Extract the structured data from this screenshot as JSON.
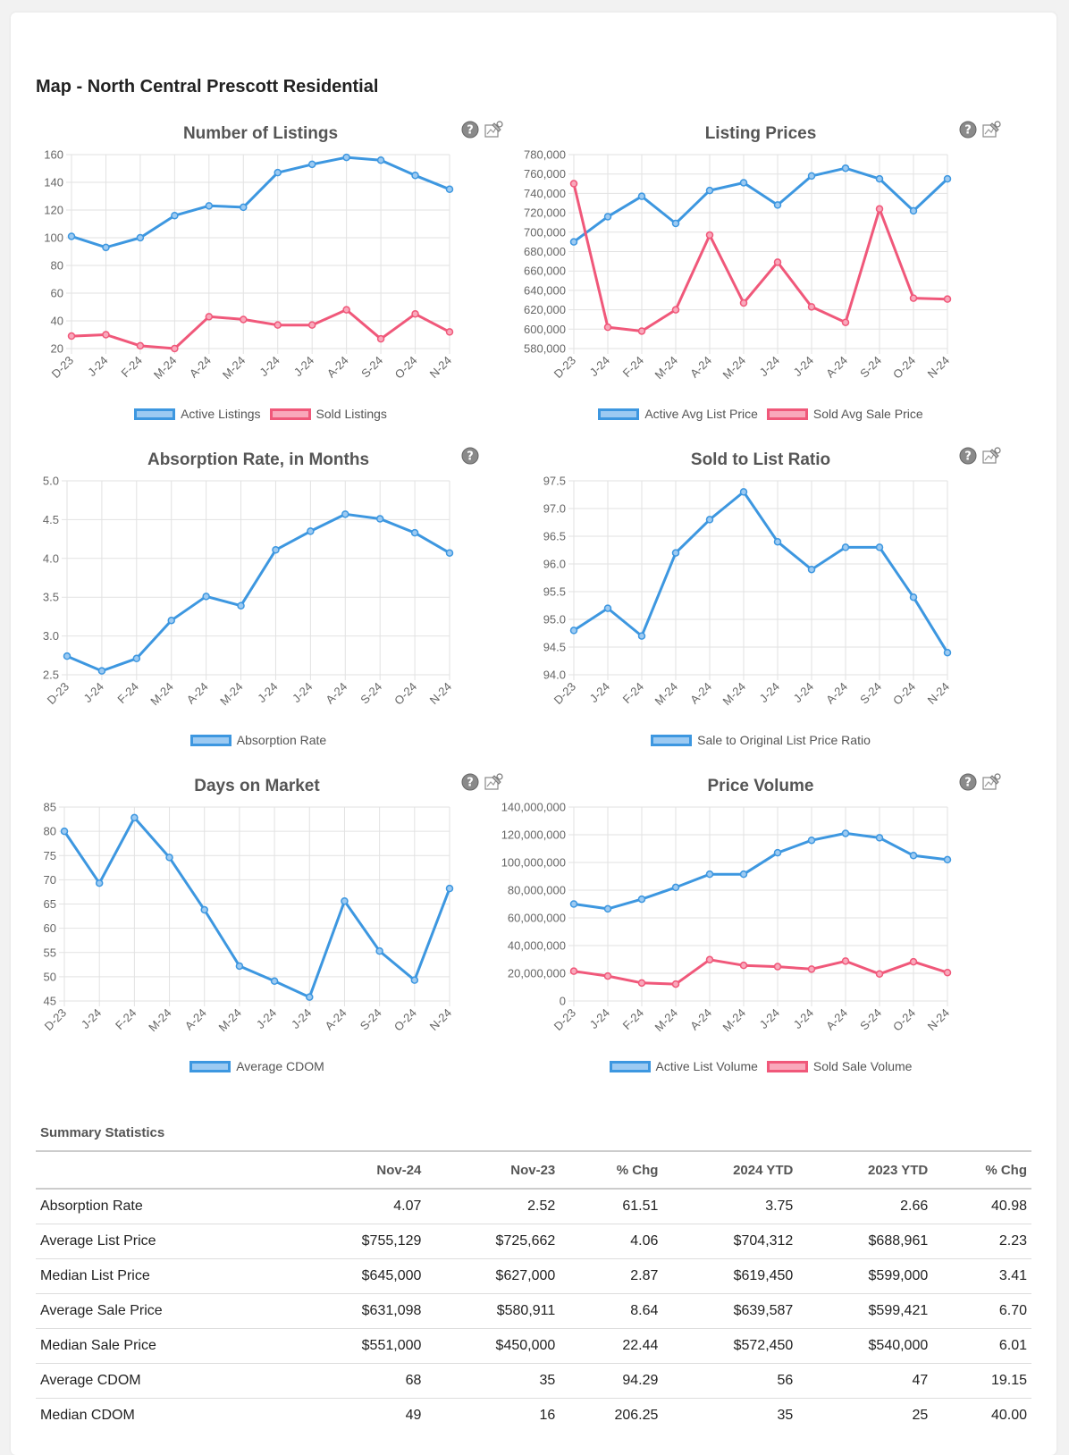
{
  "page": {
    "title": "Map - North Central Prescott Residential"
  },
  "colors": {
    "blue": "#3d97e0",
    "red": "#f0587a",
    "blue_fill": "#9ccaf2",
    "red_fill": "#f9a8bb",
    "grid": "#e2e2e2",
    "axis_text": "#666666"
  },
  "chart_data": [
    {
      "type": "line",
      "title": "Number of Listings",
      "categories": [
        "D-23",
        "J-24",
        "F-24",
        "M-24",
        "A-24",
        "M-24",
        "J-24",
        "J-24",
        "A-24",
        "S-24",
        "O-24",
        "N-24"
      ],
      "yticks": [
        20,
        40,
        60,
        80,
        100,
        120,
        140,
        160
      ],
      "tick_labels": [
        "20",
        "40",
        "60",
        "80",
        "100",
        "120",
        "140",
        "160"
      ],
      "ylim": [
        20,
        160
      ],
      "series": [
        {
          "name": "Active Listings",
          "color": "#3d97e0",
          "values": [
            101,
            93,
            100,
            116,
            123,
            122,
            147,
            153,
            158,
            156,
            145,
            135
          ]
        },
        {
          "name": "Sold Listings",
          "color": "#f0587a",
          "values": [
            29,
            30,
            22,
            20,
            43,
            41,
            37,
            37,
            48,
            27,
            45,
            32
          ]
        }
      ]
    },
    {
      "type": "line",
      "title": "Listing Prices",
      "categories": [
        "D-23",
        "J-24",
        "F-24",
        "M-24",
        "A-24",
        "M-24",
        "J-24",
        "J-24",
        "A-24",
        "S-24",
        "O-24",
        "N-24"
      ],
      "yticks": [
        580000,
        600000,
        620000,
        640000,
        660000,
        680000,
        700000,
        720000,
        740000,
        760000,
        780000
      ],
      "tick_labels": [
        "580,000",
        "600,000",
        "620,000",
        "640,000",
        "660,000",
        "680,000",
        "700,000",
        "720,000",
        "740,000",
        "760,000",
        "780,000"
      ],
      "ylim": [
        580000,
        780000
      ],
      "series": [
        {
          "name": "Active Avg List Price",
          "color": "#3d97e0",
          "values": [
            690000,
            716000,
            737000,
            709000,
            743000,
            751000,
            728000,
            758000,
            766000,
            755000,
            722000,
            755000
          ]
        },
        {
          "name": "Sold Avg Sale Price",
          "color": "#f0587a",
          "values": [
            750000,
            602000,
            598000,
            620000,
            697000,
            627000,
            669000,
            623000,
            607000,
            724000,
            632000,
            631000
          ]
        }
      ]
    },
    {
      "type": "line",
      "title": "Absorption Rate, in Months",
      "categories": [
        "D-23",
        "J-24",
        "F-24",
        "M-24",
        "A-24",
        "M-24",
        "J-24",
        "J-24",
        "A-24",
        "S-24",
        "O-24",
        "N-24"
      ],
      "yticks": [
        2.5,
        3.0,
        3.5,
        4.0,
        4.5,
        5.0
      ],
      "tick_labels": [
        "2.5",
        "3.0",
        "3.5",
        "4.0",
        "4.5",
        "5.0"
      ],
      "ylim": [
        2.5,
        5.0
      ],
      "series": [
        {
          "name": "Absorption Rate",
          "color": "#3d97e0",
          "values": [
            2.74,
            2.55,
            2.71,
            3.2,
            3.51,
            3.39,
            4.11,
            4.35,
            4.57,
            4.51,
            4.33,
            4.07
          ]
        }
      ]
    },
    {
      "type": "line",
      "title": "Sold to List Ratio",
      "categories": [
        "D-23",
        "J-24",
        "F-24",
        "M-24",
        "A-24",
        "M-24",
        "J-24",
        "J-24",
        "A-24",
        "S-24",
        "O-24",
        "N-24"
      ],
      "yticks": [
        94.0,
        94.5,
        95.0,
        95.5,
        96.0,
        96.5,
        97.0,
        97.5
      ],
      "tick_labels": [
        "94.0",
        "94.5",
        "95.0",
        "95.5",
        "96.0",
        "96.5",
        "97.0",
        "97.5"
      ],
      "ylim": [
        94.0,
        97.5
      ],
      "series": [
        {
          "name": "Sale to Original List Price Ratio",
          "color": "#3d97e0",
          "values": [
            94.8,
            95.2,
            94.7,
            96.2,
            96.8,
            97.3,
            96.4,
            95.9,
            96.3,
            96.3,
            95.4,
            94.4
          ]
        }
      ]
    },
    {
      "type": "line",
      "title": "Days on Market",
      "categories": [
        "D-23",
        "J-24",
        "F-24",
        "M-24",
        "A-24",
        "M-24",
        "J-24",
        "J-24",
        "A-24",
        "S-24",
        "O-24",
        "N-24"
      ],
      "yticks": [
        45,
        50,
        55,
        60,
        65,
        70,
        75,
        80,
        85
      ],
      "tick_labels": [
        "45",
        "50",
        "55",
        "60",
        "65",
        "70",
        "75",
        "80",
        "85"
      ],
      "ylim": [
        45,
        85
      ],
      "series": [
        {
          "name": "Average CDOM",
          "color": "#3d97e0",
          "values": [
            80,
            69.3,
            82.8,
            74.6,
            63.8,
            52.2,
            49.1,
            45.8,
            65.6,
            55.3,
            49.3,
            68.2
          ]
        }
      ]
    },
    {
      "type": "line",
      "title": "Price Volume",
      "categories": [
        "D-23",
        "J-24",
        "F-24",
        "M-24",
        "A-24",
        "M-24",
        "J-24",
        "J-24",
        "A-24",
        "S-24",
        "O-24",
        "N-24"
      ],
      "yticks": [
        0,
        20000000,
        40000000,
        60000000,
        80000000,
        100000000,
        120000000,
        140000000
      ],
      "tick_labels": [
        "0",
        "20,000,000",
        "40,000,000",
        "60,000,000",
        "80,000,000",
        "100,000,000",
        "120,000,000",
        "140,000,000"
      ],
      "ylim": [
        0,
        140000000
      ],
      "series": [
        {
          "name": "Active List Volume",
          "color": "#3d97e0",
          "values": [
            70000000,
            66500000,
            73500000,
            82000000,
            91500000,
            91500000,
            107000000,
            116000000,
            121000000,
            117800000,
            105000000,
            102000000
          ]
        },
        {
          "name": "Sold Sale Volume",
          "color": "#f0587a",
          "values": [
            21500000,
            18000000,
            13000000,
            12200000,
            29800000,
            25700000,
            24800000,
            23000000,
            28800000,
            19500000,
            28300000,
            20500000
          ]
        }
      ]
    }
  ],
  "summary": {
    "title": "Summary Statistics",
    "headers": [
      "",
      "Nov-24",
      "Nov-23",
      "% Chg",
      "2024 YTD",
      "2023 YTD",
      "% Chg"
    ],
    "rows": [
      [
        "Absorption Rate",
        "4.07",
        "2.52",
        "61.51",
        "3.75",
        "2.66",
        "40.98"
      ],
      [
        "Average List Price",
        "$755,129",
        "$725,662",
        "4.06",
        "$704,312",
        "$688,961",
        "2.23"
      ],
      [
        "Median List Price",
        "$645,000",
        "$627,000",
        "2.87",
        "$619,450",
        "$599,000",
        "3.41"
      ],
      [
        "Average Sale Price",
        "$631,098",
        "$580,911",
        "8.64",
        "$639,587",
        "$599,421",
        "6.70"
      ],
      [
        "Median Sale Price",
        "$551,000",
        "$450,000",
        "22.44",
        "$572,450",
        "$540,000",
        "6.01"
      ],
      [
        "Average CDOM",
        "68",
        "35",
        "94.29",
        "56",
        "47",
        "19.15"
      ],
      [
        "Median CDOM",
        "49",
        "16",
        "206.25",
        "35",
        "25",
        "40.00"
      ]
    ]
  }
}
